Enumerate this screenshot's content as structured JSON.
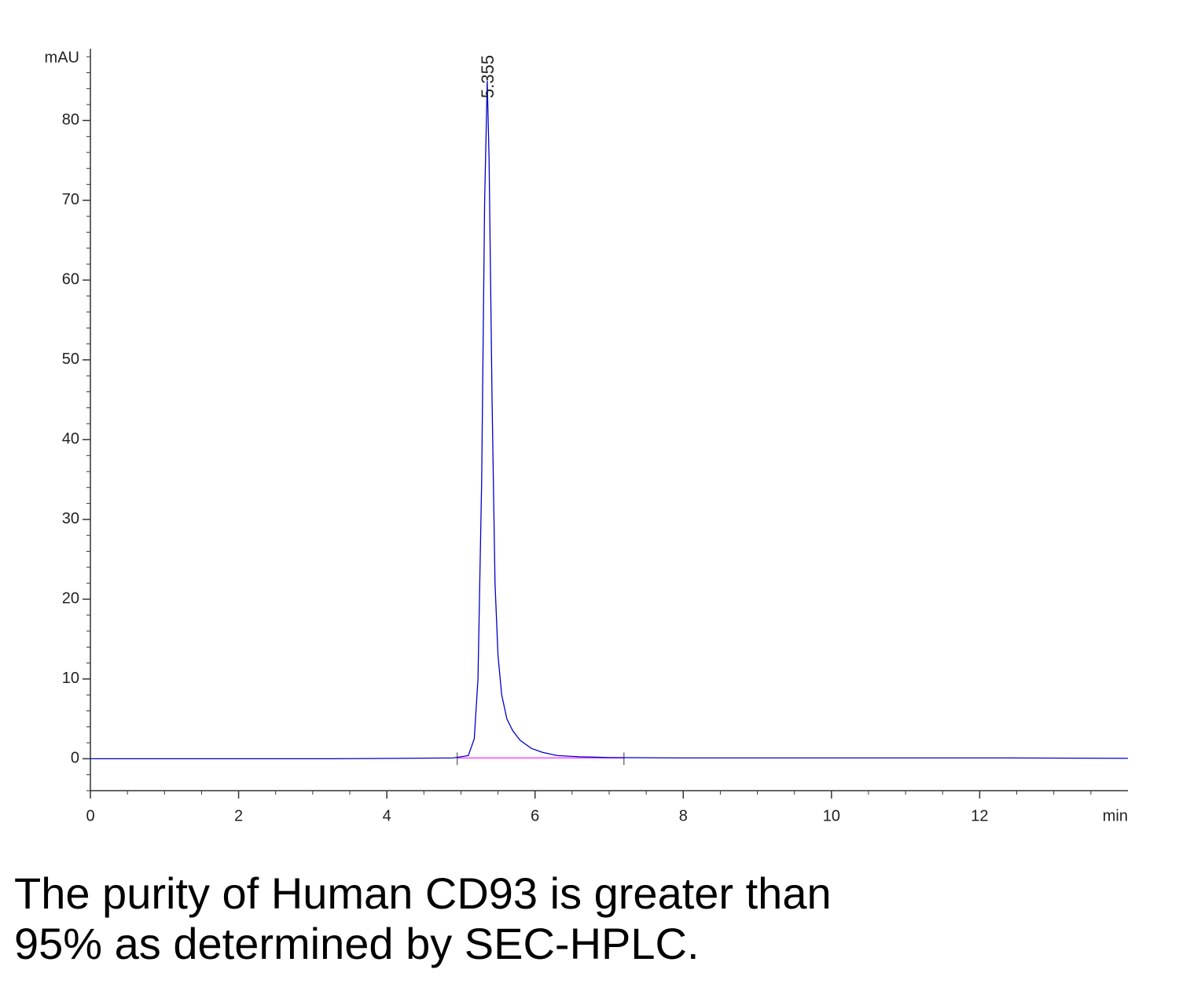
{
  "chart_data": {
    "type": "line",
    "y_label": "mAU",
    "x_label": "min",
    "peak_label": {
      "x": 5.355,
      "label": "5.355"
    },
    "x": [
      0,
      2.5,
      3.3,
      4.9,
      5.1,
      5.18,
      5.23,
      5.28,
      5.32,
      5.355,
      5.38,
      5.42,
      5.46,
      5.5,
      5.55,
      5.62,
      5.7,
      5.8,
      5.95,
      6.1,
      6.3,
      6.6,
      7.0,
      8,
      12.4,
      14
    ],
    "series": [
      {
        "color": "#0000cc",
        "values": [
          0,
          0,
          0,
          0.1,
          0.4,
          2.5,
          10,
          35,
          70,
          85,
          75,
          45,
          22,
          13,
          8,
          5,
          3.5,
          2.3,
          1.3,
          0.8,
          0.4,
          0.25,
          0.15,
          0.1,
          0.1,
          0.05
        ]
      }
    ],
    "baseline": {
      "x": [
        4.95,
        7.2
      ],
      "values": [
        0.1,
        0.1
      ],
      "color": "#ff44ff"
    },
    "xlim": [
      0,
      14
    ],
    "ylim": [
      -4,
      89
    ],
    "xticks": [
      0,
      2,
      4,
      6,
      8,
      10,
      12
    ],
    "yticks": [
      0,
      10,
      20,
      30,
      40,
      50,
      60,
      70,
      80
    ],
    "xminorticks": [
      0.5,
      1,
      1.5,
      2.5,
      3,
      3.5,
      4.5,
      5,
      5.5,
      6.5,
      7,
      7.5,
      8.5,
      9,
      9.5,
      10.5,
      11,
      11.5,
      12.5,
      13,
      13.5
    ],
    "yminorticks": [
      -4,
      -2,
      2,
      4,
      6,
      8,
      12,
      14,
      16,
      18,
      22,
      24,
      26,
      28,
      32,
      34,
      36,
      38,
      42,
      44,
      46,
      48,
      52,
      54,
      56,
      58,
      62,
      64,
      66,
      68,
      72,
      74,
      76,
      78,
      82,
      84,
      86,
      88
    ]
  },
  "caption": [
    "The purity of Human CD93 is greater than",
    "95% as determined by SEC-HPLC."
  ]
}
